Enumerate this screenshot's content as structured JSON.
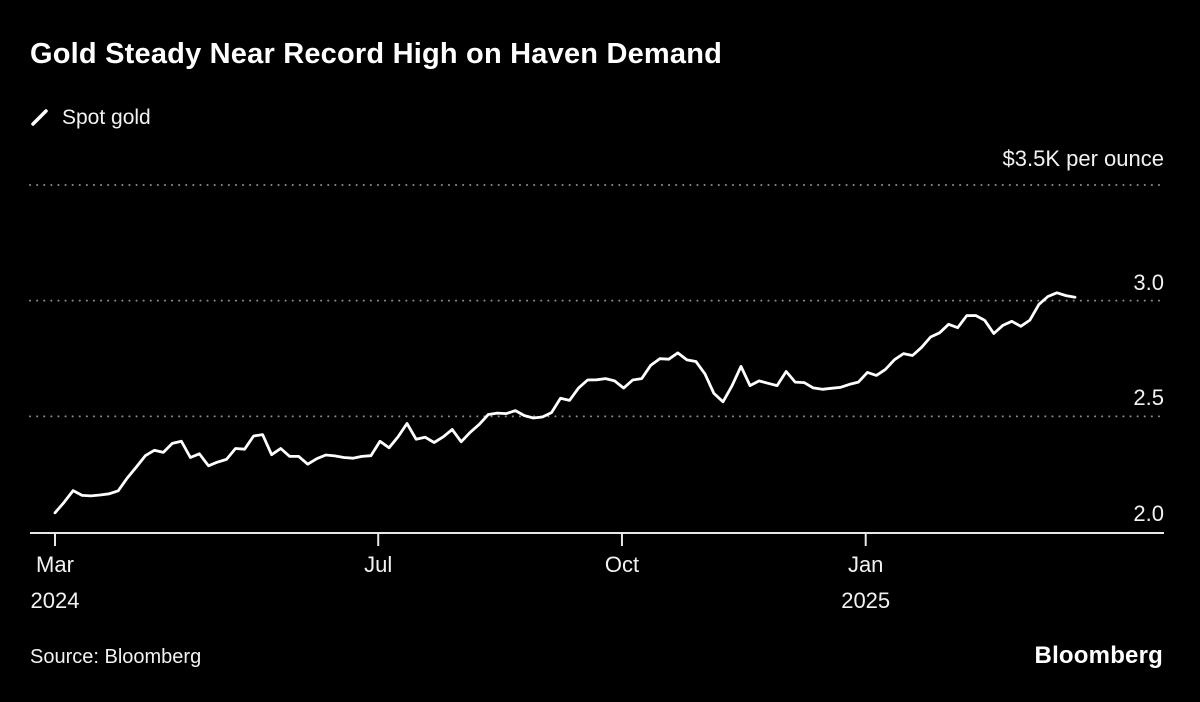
{
  "footer": {
    "source": "Source: Bloomberg",
    "brand": "Bloomberg"
  },
  "colors": {
    "background": "#000000",
    "line": "#ffffff",
    "grid_dots": "#8a8a8a",
    "axis": "#e8e8e8",
    "text": "#f2f2f2"
  },
  "chart_data": {
    "type": "line",
    "title": "Gold Steady Near Record High on Haven Demand",
    "unit_label": "$3.5K per ounce",
    "legend_position": "top-left",
    "grid": "dotted-horizontal",
    "ylim": [
      2.0,
      3.5
    ],
    "y_gridlines": [
      2.5,
      3.0,
      3.5
    ],
    "y_ticks": [
      {
        "value": 3.0,
        "label": "3.0"
      },
      {
        "value": 2.5,
        "label": "2.5"
      },
      {
        "value": 2.0,
        "label": "2.0"
      }
    ],
    "x_ticks": [
      {
        "label": "Mar",
        "sublabel": "2024",
        "date": "2024-03-01"
      },
      {
        "label": "Jul",
        "sublabel": "",
        "date": "2024-07-01"
      },
      {
        "label": "Oct",
        "sublabel": "",
        "date": "2024-10-01"
      },
      {
        "label": "Jan",
        "sublabel": "2025",
        "date": "2025-01-01"
      }
    ],
    "series": [
      {
        "name": "Spot gold",
        "color": "#ffffff",
        "units": "USD thousands per troy ounce",
        "x_start": "2024-03-01",
        "x_end": "2025-03-21",
        "values": [
          2.083,
          2.128,
          2.179,
          2.158,
          2.156,
          2.16,
          2.165,
          2.178,
          2.233,
          2.28,
          2.33,
          2.353,
          2.344,
          2.383,
          2.392,
          2.322,
          2.338,
          2.286,
          2.302,
          2.314,
          2.361,
          2.358,
          2.415,
          2.421,
          2.334,
          2.361,
          2.327,
          2.327,
          2.293,
          2.317,
          2.333,
          2.329,
          2.322,
          2.319,
          2.327,
          2.33,
          2.392,
          2.364,
          2.411,
          2.469,
          2.401,
          2.41,
          2.387,
          2.411,
          2.443,
          2.39,
          2.431,
          2.465,
          2.508,
          2.514,
          2.512,
          2.525,
          2.503,
          2.493,
          2.497,
          2.516,
          2.578,
          2.569,
          2.622,
          2.657,
          2.658,
          2.663,
          2.653,
          2.622,
          2.657,
          2.663,
          2.721,
          2.749,
          2.747,
          2.774,
          2.744,
          2.737,
          2.684,
          2.599,
          2.563,
          2.632,
          2.716,
          2.633,
          2.653,
          2.643,
          2.633,
          2.694,
          2.648,
          2.646,
          2.623,
          2.617,
          2.621,
          2.625,
          2.638,
          2.648,
          2.69,
          2.677,
          2.703,
          2.745,
          2.771,
          2.763,
          2.798,
          2.843,
          2.861,
          2.898,
          2.883,
          2.935,
          2.936,
          2.915,
          2.858,
          2.893,
          2.911,
          2.889,
          2.916,
          2.984,
          3.018,
          3.034,
          3.022,
          3.015
        ]
      }
    ]
  }
}
